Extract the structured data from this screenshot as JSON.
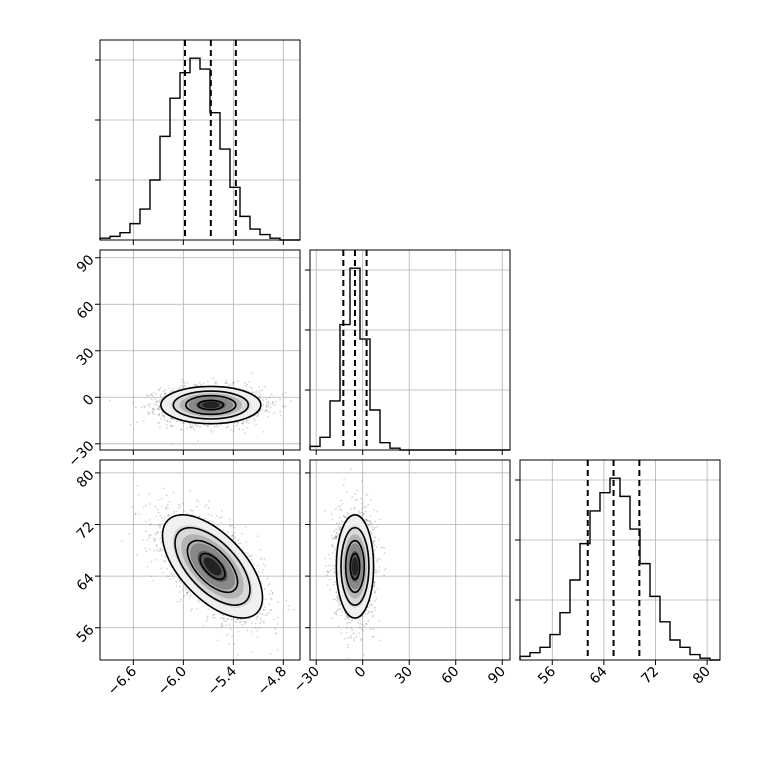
{
  "chart_data": {
    "type": "corner",
    "title": "",
    "parameters": [
      {
        "name": "",
        "range": [
          -7.0,
          -4.6
        ],
        "ticks": [
          -6.6,
          -6.0,
          -5.4,
          -4.8
        ],
        "tick_labels": [
          "−6.6",
          "−6.0",
          "−5.4",
          "−4.8"
        ],
        "quantiles": [
          -5.98,
          -5.67,
          -5.37
        ]
      },
      {
        "name": "",
        "range": [
          -34,
          95
        ],
        "ticks": [
          -30,
          0,
          30,
          60,
          90
        ],
        "tick_labels": [
          "−30",
          "0",
          "30",
          "60",
          "90"
        ],
        "quantiles": [
          -12.5,
          -5.0,
          2.5
        ]
      },
      {
        "name": "",
        "range": [
          51,
          82
        ],
        "ticks": [
          56,
          64,
          72,
          80
        ],
        "tick_labels": [
          "56",
          "64",
          "72",
          "80"
        ],
        "quantiles": [
          61.5,
          65.5,
          69.5
        ]
      }
    ],
    "diagonal_histograms": [
      {
        "param": 0,
        "bin_start": -7.0,
        "bin_width": 0.12,
        "counts": [
          0.01,
          0.02,
          0.04,
          0.09,
          0.17,
          0.33,
          0.57,
          0.78,
          0.92,
          1.0,
          0.94,
          0.7,
          0.5,
          0.29,
          0.13,
          0.06,
          0.03,
          0.01,
          0.0,
          0.0
        ]
      },
      {
        "param": 1,
        "bin_start": -34,
        "bin_width": 6.45,
        "counts": [
          0.02,
          0.07,
          0.27,
          0.69,
          1.0,
          0.61,
          0.22,
          0.04,
          0.01,
          0.0,
          0.0,
          0.0,
          0.0,
          0.0,
          0.0,
          0.0,
          0.0,
          0.0,
          0.0,
          0.0
        ]
      },
      {
        "param": 2,
        "bin_start": 51,
        "bin_width": 1.55,
        "counts": [
          0.02,
          0.04,
          0.07,
          0.14,
          0.26,
          0.44,
          0.64,
          0.82,
          0.92,
          1.0,
          0.9,
          0.72,
          0.53,
          0.35,
          0.21,
          0.11,
          0.07,
          0.03,
          0.01,
          0.0
        ]
      }
    ],
    "joint_distributions": [
      {
        "x_param": 0,
        "y_param": 1,
        "center": [
          -5.67,
          -5.0
        ],
        "sd": [
          0.3,
          6.0
        ],
        "rho": 0.0
      },
      {
        "x_param": 0,
        "y_param": 2,
        "center": [
          -5.65,
          65.5
        ],
        "sd": [
          0.3,
          4.0
        ],
        "rho": -0.6
      },
      {
        "x_param": 1,
        "y_param": 2,
        "center": [
          -5.0,
          65.5
        ],
        "sd": [
          6.0,
          4.0
        ],
        "rho": 0.0
      }
    ],
    "contour_levels_sigma": [
      0.5,
      1.0,
      1.5,
      2.0
    ],
    "grid": true
  }
}
